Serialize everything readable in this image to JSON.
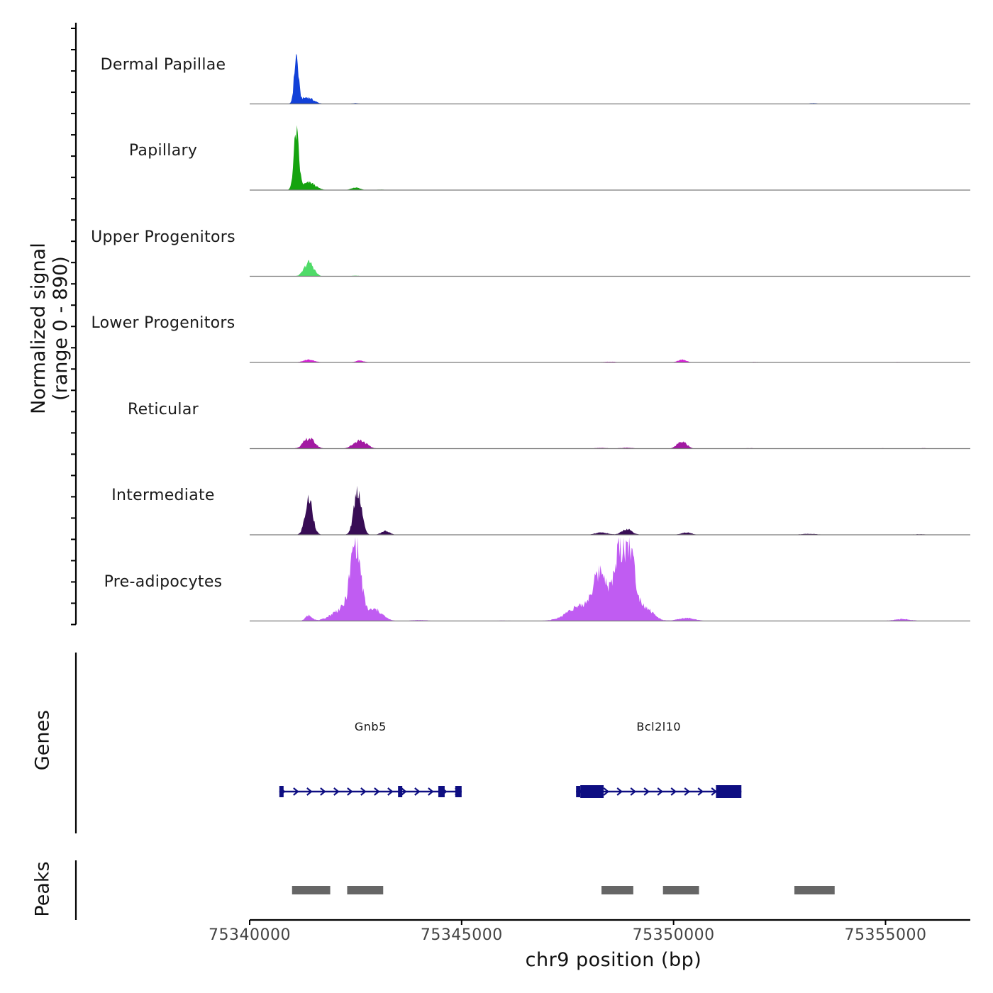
{
  "chart_data": {
    "type": "area",
    "title": "",
    "xlabel": "chr9 position (bp)",
    "ylabel": "Normalized signal\n(range 0 - 890)",
    "ylabel_line1": "Normalized signal",
    "ylabel_line2": "(range 0 - 890)",
    "ylim": [
      0,
      890
    ],
    "xlim": [
      75340000,
      75357000
    ],
    "x_ticks": [
      75340000,
      75345000,
      75350000,
      75355000
    ],
    "x_tick_labels": [
      "75340000",
      "75345000",
      "75350000",
      "75355000"
    ],
    "series": [
      {
        "name": "Dermal Papillae",
        "color": "#1241D8",
        "peaks": [
          [
            75341100,
            50,
            500
          ],
          [
            75341350,
            150,
            70
          ],
          [
            75342500,
            90,
            8
          ],
          [
            75353300,
            80,
            8
          ],
          [
            75343200,
            150,
            2
          ],
          [
            75345800,
            150,
            1.5
          ],
          [
            75348500,
            200,
            1
          ],
          [
            75350000,
            200,
            1.5
          ],
          [
            75356200,
            100,
            1.5
          ]
        ]
      },
      {
        "name": "Papillary",
        "color": "#15A30F",
        "peaks": [
          [
            75341100,
            60,
            600
          ],
          [
            75341400,
            150,
            80
          ],
          [
            75342500,
            100,
            30
          ],
          [
            75343100,
            120,
            5
          ],
          [
            75353100,
            150,
            3
          ],
          [
            75346000,
            200,
            1
          ],
          [
            75349000,
            200,
            1
          ],
          [
            75356200,
            100,
            2
          ]
        ]
      },
      {
        "name": "Upper Progenitors",
        "color": "#4FDB68",
        "peaks": [
          [
            75341400,
            110,
            150
          ],
          [
            75342500,
            100,
            6
          ],
          [
            75344000,
            200,
            1
          ]
        ]
      },
      {
        "name": "Lower Progenitors",
        "color": "#D41FD4",
        "peaks": [
          [
            75341400,
            130,
            30
          ],
          [
            75342600,
            100,
            20
          ],
          [
            75348500,
            160,
            8
          ],
          [
            75350200,
            100,
            30
          ],
          [
            75351900,
            140,
            5
          ],
          [
            75344500,
            200,
            2
          ],
          [
            75355300,
            140,
            4
          ]
        ]
      },
      {
        "name": "Reticular",
        "color": "#A21AA2",
        "peaks": [
          [
            75341400,
            130,
            110
          ],
          [
            75342600,
            150,
            90
          ],
          [
            75348300,
            150,
            8
          ],
          [
            75348900,
            150,
            10
          ],
          [
            75350200,
            110,
            80
          ],
          [
            75351800,
            130,
            5
          ],
          [
            75354900,
            120,
            4
          ],
          [
            75355900,
            120,
            5
          ],
          [
            75344000,
            200,
            2
          ]
        ]
      },
      {
        "name": "Intermediate",
        "color": "#380D55",
        "peaks": [
          [
            75341400,
            90,
            380
          ],
          [
            75342550,
            90,
            490
          ],
          [
            75343200,
            100,
            40
          ],
          [
            75348300,
            150,
            25
          ],
          [
            75348900,
            120,
            60
          ],
          [
            75350300,
            120,
            25
          ],
          [
            75353200,
            200,
            10
          ],
          [
            75355800,
            150,
            6
          ]
        ]
      },
      {
        "name": "Pre-adipocytes",
        "color": "#C05CF2",
        "peaks": [
          [
            75342500,
            120,
            780
          ],
          [
            75342200,
            250,
            130
          ],
          [
            75342950,
            180,
            120
          ],
          [
            75341400,
            80,
            60
          ],
          [
            75348300,
            180,
            420
          ],
          [
            75348000,
            400,
            150
          ],
          [
            75348700,
            100,
            580
          ],
          [
            75348950,
            130,
            760
          ],
          [
            75349300,
            200,
            150
          ],
          [
            75347600,
            150,
            40
          ],
          [
            75350300,
            200,
            30
          ],
          [
            75355400,
            200,
            20
          ],
          [
            75344000,
            200,
            10
          ],
          [
            75346000,
            200,
            5
          ]
        ]
      }
    ],
    "genes": [
      {
        "name": "Gnb5",
        "start": 75340700,
        "end": 75345000,
        "strand": "+",
        "exons": [
          [
            75340700,
            75340800
          ],
          [
            75343500,
            75343600
          ],
          [
            75344450,
            75344600
          ],
          [
            75344850,
            75345000
          ]
        ]
      },
      {
        "name": "Bcl2l10",
        "start": 75347700,
        "end": 75351600,
        "strand": "+",
        "exons": [
          [
            75347700,
            75347800
          ],
          [
            75347800,
            75348350
          ],
          [
            75351000,
            75351600
          ]
        ]
      }
    ],
    "peaks_track": [
      [
        75341000,
        75341900
      ],
      [
        75342300,
        75343150
      ],
      [
        75348300,
        75349050
      ],
      [
        75349750,
        75350600
      ],
      [
        75352850,
        75353800
      ]
    ],
    "panel_labels": {
      "genes": "Genes",
      "peaks": "Peaks"
    }
  },
  "colors": {
    "gene": "#0E0E82",
    "peak_bar": "#666666",
    "axis": "#000000",
    "baseline": "#7a7a7a"
  }
}
